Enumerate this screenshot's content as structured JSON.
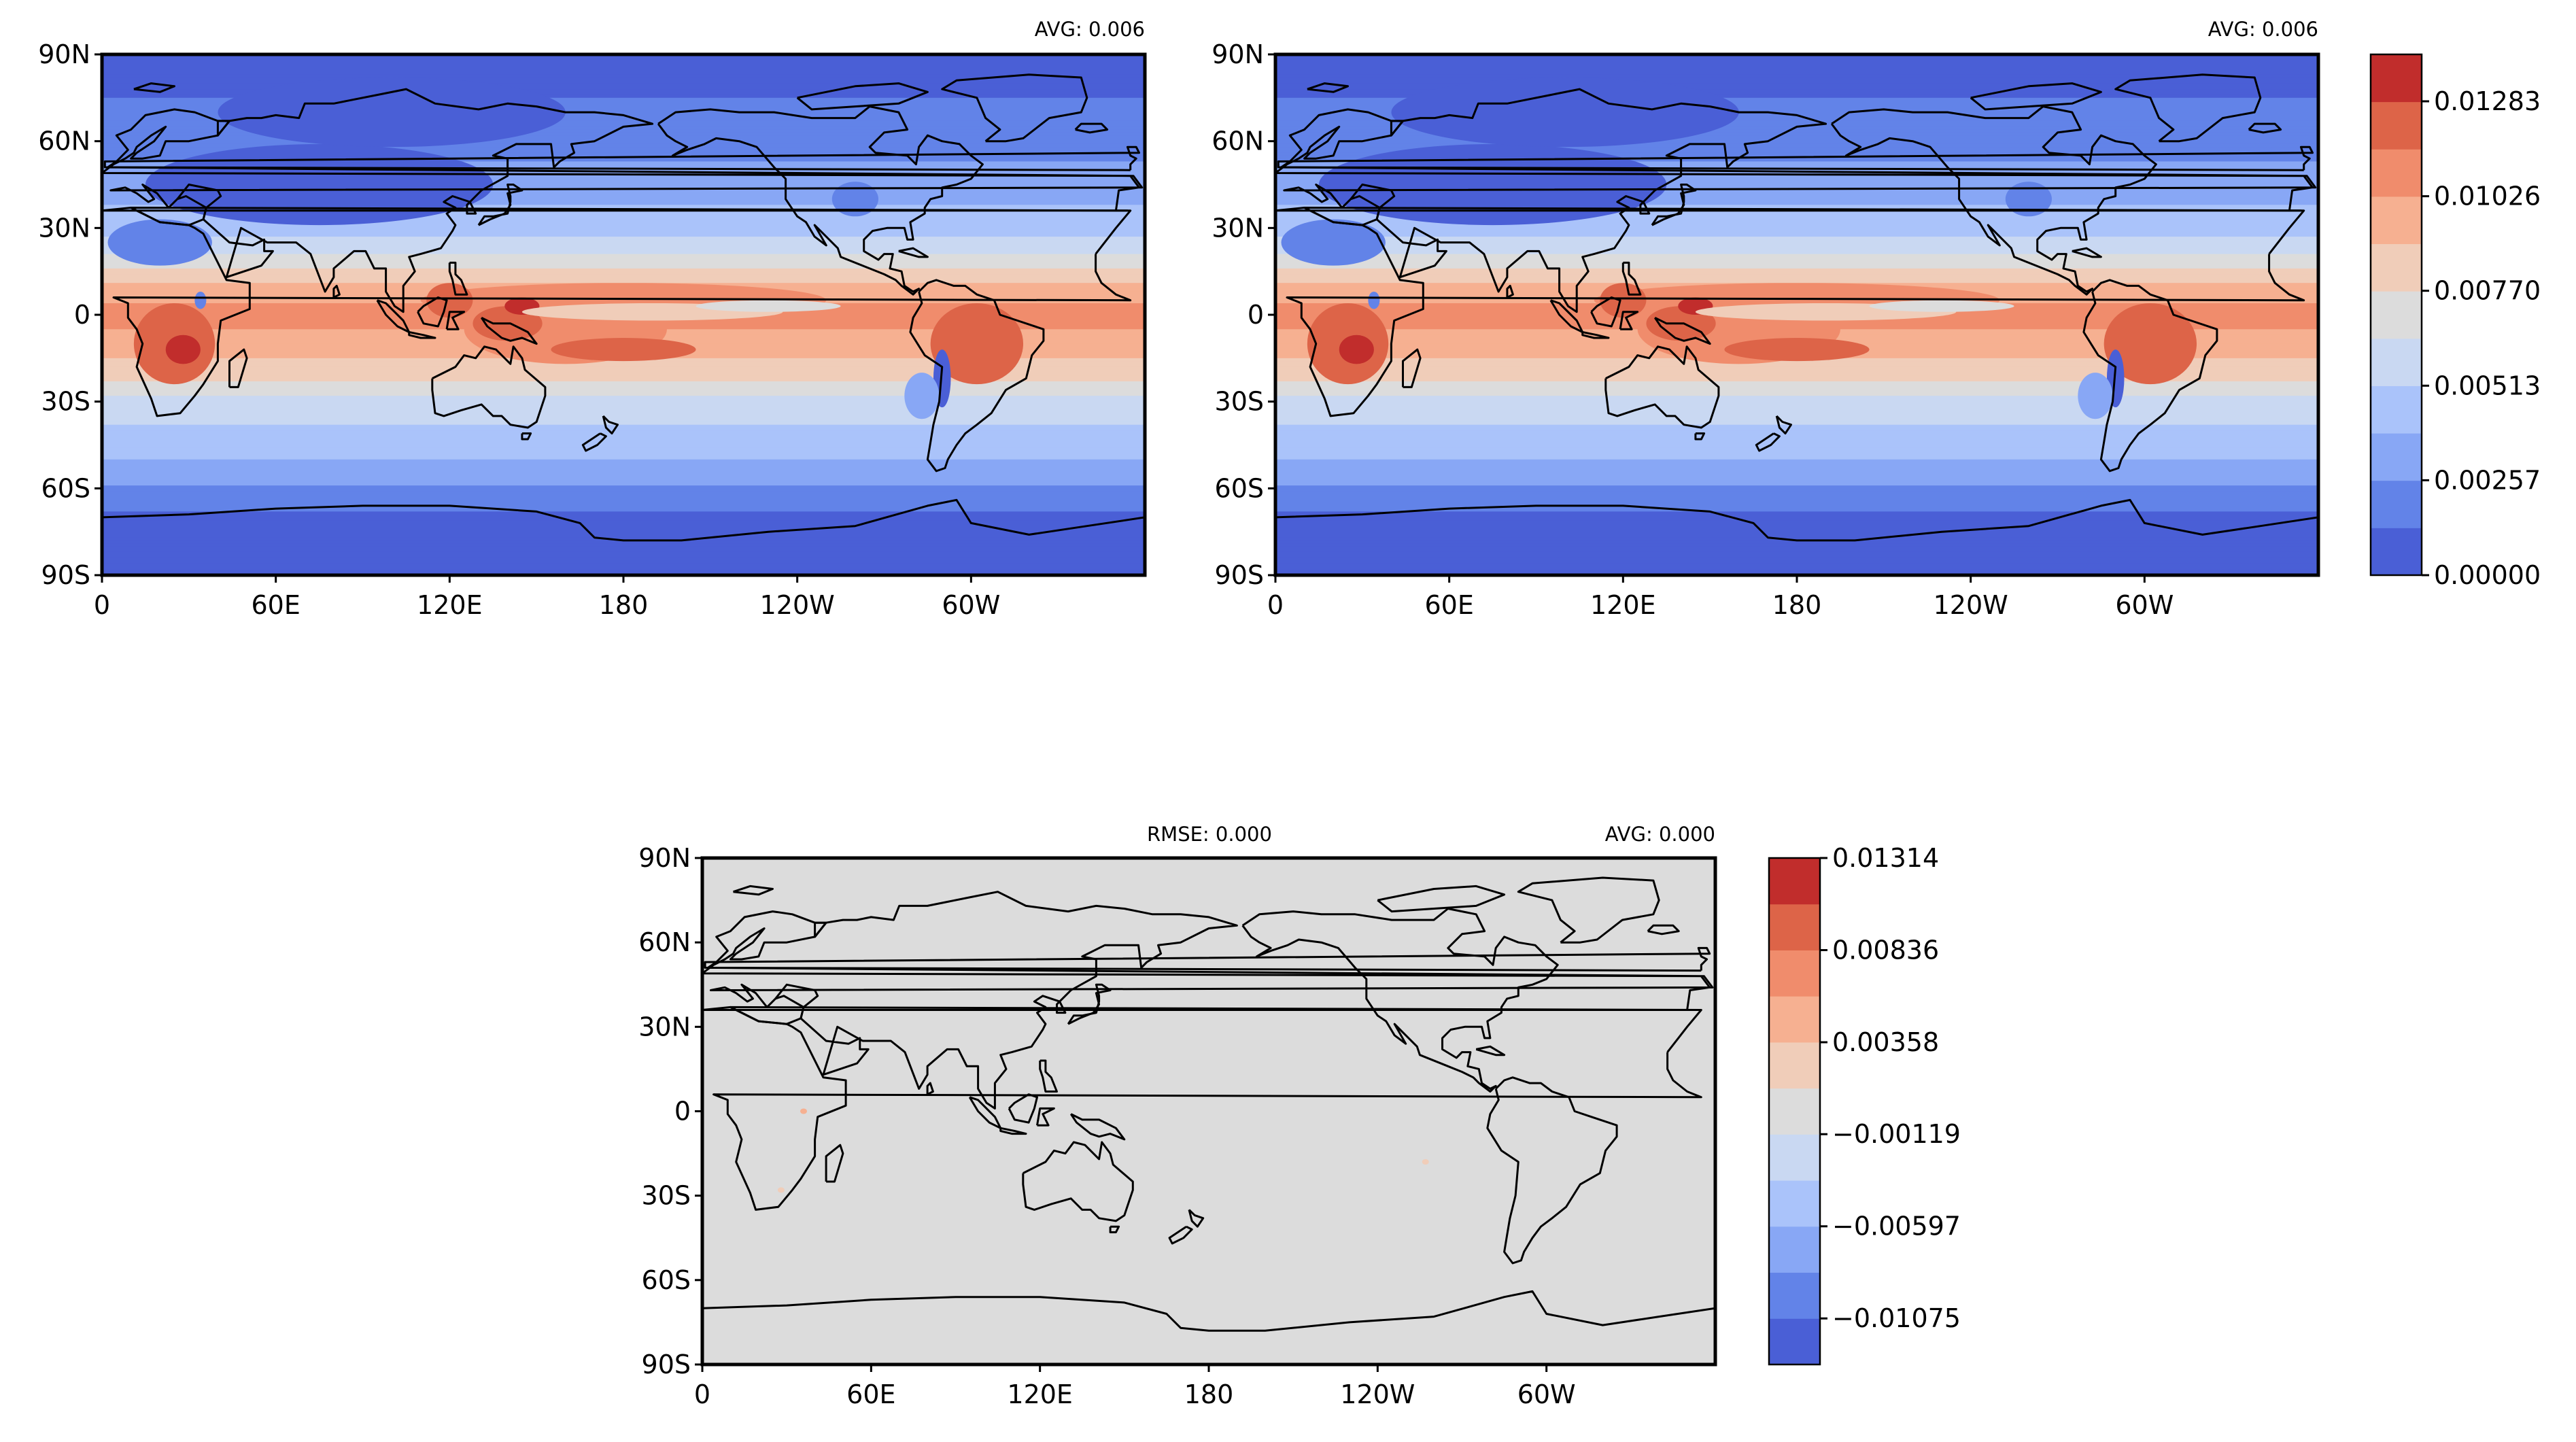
{
  "panels": [
    {
      "avg_label": "AVG: 0.006",
      "rmse_label": "",
      "field": "model"
    },
    {
      "avg_label": "AVG: 0.006",
      "rmse_label": "",
      "field": "reference"
    },
    {
      "avg_label": "AVG: 0.000",
      "rmse_label": "RMSE: 0.000",
      "field": "difference"
    }
  ],
  "axes": {
    "lat_ticks": [
      "90N",
      "60N",
      "30N",
      "0",
      "30S",
      "60S",
      "90S"
    ],
    "lon_ticks": [
      "0",
      "60E",
      "120E",
      "180",
      "120W",
      "60W"
    ],
    "lat_values": [
      90,
      60,
      30,
      0,
      -30,
      -60,
      -90
    ],
    "lon_values": [
      0,
      60,
      120,
      180,
      240,
      300
    ]
  },
  "colorbars": {
    "main": {
      "ticks": [
        "0.01283",
        "0.01026",
        "0.00770",
        "0.00513",
        "0.00257",
        "0.00000"
      ],
      "tick_values": [
        0.01283,
        0.01026,
        0.0077,
        0.00513,
        0.00257,
        0.0
      ],
      "range": [
        0.0,
        0.0141
      ],
      "colors": [
        "#4a5fd6",
        "#6283e8",
        "#88a7f5",
        "#aac3fa",
        "#c9d8f2",
        "#dcdcdc",
        "#f0cdb9",
        "#f6b091",
        "#f08c6c",
        "#dd6448",
        "#c12d2c"
      ]
    },
    "diff": {
      "ticks": [
        "0.01314",
        "0.00836",
        "0.00358",
        "−0.00119",
        "−0.00597",
        "−0.01075"
      ],
      "tick_values": [
        0.01314,
        0.00836,
        0.00358,
        -0.00119,
        -0.00597,
        -0.01075
      ],
      "range": [
        -0.01314,
        0.01314
      ],
      "colors": [
        "#4a5fd6",
        "#6283e8",
        "#88a7f5",
        "#aac3fa",
        "#c9d8f2",
        "#dcdcdc",
        "#f0cdb9",
        "#f6b091",
        "#f08c6c",
        "#dd6448",
        "#c12d2c"
      ]
    }
  },
  "chart_data": {
    "type": "heatmap",
    "projection": "plate-carree, central longitude 180",
    "lat_range": [
      -90,
      90
    ],
    "lon_range": [
      0,
      360
    ],
    "description_of_fields": "",
    "zonal_levels_model": [
      {
        "lat": 90,
        "level": 0
      },
      {
        "lat": 60,
        "level": 1
      },
      {
        "lat": 45,
        "level": 2
      },
      {
        "lat": 30,
        "level": 3
      },
      {
        "lat": 18,
        "level": 5
      },
      {
        "lat": 8,
        "level": 7
      },
      {
        "lat": 0,
        "level": 8
      },
      {
        "lat": -10,
        "level": 7
      },
      {
        "lat": -20,
        "level": 6
      },
      {
        "lat": -30,
        "level": 4
      },
      {
        "lat": -45,
        "level": 3
      },
      {
        "lat": -55,
        "level": 2
      },
      {
        "lat": -63,
        "level": 1
      },
      {
        "lat": -72,
        "level": 0
      },
      {
        "lat": -90,
        "level": 0
      }
    ],
    "difference_field_level": 5
  }
}
